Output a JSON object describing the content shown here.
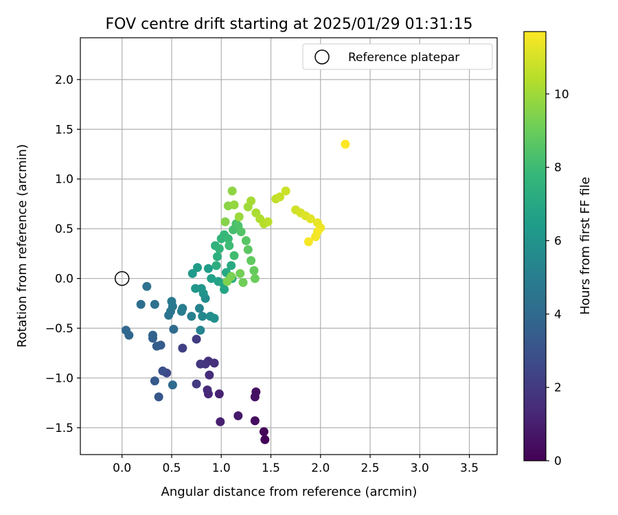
{
  "chart_data": {
    "type": "scatter",
    "title": "FOV centre drift starting at 2025/01/29 01:31:15",
    "xlabel": "Angular distance from reference (arcmin)",
    "ylabel": "Rotation from reference (arcmin)",
    "xlim": [
      -0.42,
      3.78
    ],
    "ylim": [
      -1.77,
      2.42
    ],
    "xticks": [
      0.0,
      0.5,
      1.0,
      1.5,
      2.0,
      2.5,
      3.0,
      3.5
    ],
    "xtick_labels": [
      "0.0",
      "0.5",
      "1.0",
      "1.5",
      "2.0",
      "2.5",
      "3.0",
      "3.5"
    ],
    "yticks": [
      -1.5,
      -1.0,
      -0.5,
      0.0,
      0.5,
      1.0,
      1.5,
      2.0
    ],
    "ytick_labels": [
      "−1.5",
      "−1.0",
      "−0.5",
      "0.0",
      "0.5",
      "1.0",
      "1.5",
      "2.0"
    ],
    "grid": true,
    "legend": {
      "position": "top-right",
      "entries": [
        {
          "label": "Reference platepar",
          "marker": "hollow-circle"
        }
      ]
    },
    "reference_point": {
      "x": 0.0,
      "y": 0.0
    },
    "colorbar": {
      "label": "Hours from first FF file",
      "range": [
        0,
        11.7
      ],
      "ticks": [
        0,
        2,
        4,
        6,
        8,
        10
      ],
      "tick_labels": [
        "0",
        "2",
        "4",
        "6",
        "8",
        "10"
      ],
      "colormap": "viridis",
      "colors": [
        "#440154",
        "#482878",
        "#3e4989",
        "#31688e",
        "#26828e",
        "#1f9e89",
        "#35b779",
        "#6ece58",
        "#b5de2b",
        "#fde725"
      ]
    },
    "series": [
      {
        "points": [
          [
            1.44,
            -1.62,
            0.1
          ],
          [
            1.43,
            -1.54,
            0.2
          ],
          [
            1.34,
            -1.43,
            0.4
          ],
          [
            1.35,
            -1.14,
            0.5
          ],
          [
            1.34,
            -1.19,
            0.5
          ],
          [
            1.17,
            -1.38,
            0.8
          ],
          [
            0.99,
            -1.44,
            1.0
          ],
          [
            0.98,
            -1.16,
            1.1
          ],
          [
            0.87,
            -1.16,
            1.3
          ],
          [
            0.86,
            -1.12,
            1.4
          ],
          [
            0.88,
            -0.97,
            1.5
          ],
          [
            0.93,
            -0.85,
            1.6
          ],
          [
            0.87,
            -0.83,
            1.7
          ],
          [
            0.84,
            -0.86,
            1.8
          ],
          [
            0.79,
            -0.86,
            1.9
          ],
          [
            0.75,
            -1.06,
            2.0
          ],
          [
            0.75,
            -0.61,
            2.1
          ],
          [
            0.61,
            -0.7,
            2.3
          ],
          [
            0.45,
            -0.95,
            2.6
          ],
          [
            0.41,
            -0.93,
            2.9
          ],
          [
            0.37,
            -1.19,
            3.2
          ],
          [
            0.33,
            -1.03,
            3.3
          ],
          [
            0.39,
            -0.67,
            3.4
          ],
          [
            0.35,
            -0.68,
            3.5
          ],
          [
            0.31,
            -0.6,
            3.6
          ],
          [
            0.31,
            -0.57,
            3.7
          ],
          [
            0.07,
            -0.57,
            3.8
          ],
          [
            0.04,
            -0.52,
            3.9
          ],
          [
            0.51,
            -1.07,
            4.0
          ],
          [
            0.52,
            -0.51,
            4.1
          ],
          [
            0.19,
            -0.26,
            4.2
          ],
          [
            0.33,
            -0.26,
            4.3
          ],
          [
            0.25,
            -0.08,
            4.4
          ],
          [
            0.47,
            -0.37,
            4.5
          ],
          [
            0.49,
            -0.33,
            4.6
          ],
          [
            0.51,
            -0.28,
            4.7
          ],
          [
            0.5,
            -0.23,
            4.8
          ],
          [
            0.61,
            -0.3,
            4.9
          ],
          [
            0.6,
            -0.33,
            5.0
          ],
          [
            0.7,
            -0.38,
            5.1
          ],
          [
            0.78,
            -0.3,
            5.2
          ],
          [
            0.79,
            -0.52,
            5.3
          ],
          [
            0.81,
            -0.38,
            5.5
          ],
          [
            0.84,
            -0.2,
            5.6
          ],
          [
            0.89,
            -0.38,
            5.7
          ],
          [
            0.93,
            -0.4,
            5.8
          ],
          [
            0.82,
            -0.15,
            6.0
          ],
          [
            0.8,
            -0.1,
            6.1
          ],
          [
            0.74,
            -0.1,
            6.2
          ],
          [
            0.71,
            0.05,
            6.3
          ],
          [
            0.76,
            0.11,
            6.4
          ],
          [
            0.87,
            0.1,
            6.5
          ],
          [
            0.9,
            0.0,
            6.6
          ],
          [
            0.97,
            -0.03,
            6.7
          ],
          [
            1.03,
            -0.11,
            6.8
          ],
          [
            1.02,
            -0.05,
            6.9
          ],
          [
            1.05,
            0.06,
            7.0
          ],
          [
            1.1,
            0.13,
            7.1
          ],
          [
            1.11,
            0.0,
            7.2
          ],
          [
            0.95,
            0.13,
            7.3
          ],
          [
            0.96,
            0.22,
            7.4
          ],
          [
            0.94,
            0.33,
            7.5
          ],
          [
            0.98,
            0.3,
            7.6
          ],
          [
            1.0,
            0.4,
            7.7
          ],
          [
            1.03,
            0.44,
            7.8
          ],
          [
            1.07,
            0.4,
            7.9
          ],
          [
            1.08,
            0.33,
            8.0
          ],
          [
            1.13,
            0.23,
            8.1
          ],
          [
            1.12,
            0.49,
            8.2
          ],
          [
            1.15,
            0.55,
            8.3
          ],
          [
            1.17,
            0.53,
            8.4
          ],
          [
            1.2,
            0.47,
            8.5
          ],
          [
            1.25,
            0.38,
            8.6
          ],
          [
            1.27,
            0.29,
            8.7
          ],
          [
            1.3,
            0.18,
            8.8
          ],
          [
            1.33,
            0.08,
            8.9
          ],
          [
            1.34,
            0.0,
            9.0
          ],
          [
            1.22,
            -0.04,
            9.1
          ],
          [
            1.19,
            0.05,
            9.2
          ],
          [
            1.1,
            0.02,
            9.3
          ],
          [
            1.06,
            -0.03,
            9.4
          ],
          [
            1.04,
            0.57,
            9.5
          ],
          [
            1.07,
            0.73,
            9.6
          ],
          [
            1.11,
            0.88,
            9.7
          ],
          [
            1.13,
            0.74,
            9.8
          ],
          [
            1.18,
            0.62,
            9.9
          ],
          [
            1.27,
            0.72,
            10.0
          ],
          [
            1.3,
            0.78,
            10.1
          ],
          [
            1.35,
            0.66,
            10.2
          ],
          [
            1.39,
            0.6,
            10.3
          ],
          [
            1.43,
            0.55,
            10.4
          ],
          [
            1.47,
            0.57,
            10.5
          ],
          [
            1.55,
            0.8,
            10.6
          ],
          [
            1.59,
            0.82,
            10.7
          ],
          [
            1.65,
            0.88,
            10.8
          ],
          [
            1.75,
            0.69,
            10.9
          ],
          [
            1.8,
            0.66,
            11.0
          ],
          [
            1.85,
            0.63,
            11.1
          ],
          [
            1.9,
            0.6,
            11.2
          ],
          [
            1.97,
            0.56,
            11.3
          ],
          [
            2.0,
            0.51,
            11.4
          ],
          [
            1.95,
            0.42,
            11.5
          ],
          [
            1.97,
            0.47,
            11.55
          ],
          [
            1.88,
            0.37,
            11.6
          ],
          [
            2.25,
            1.35,
            11.7
          ]
        ],
        "note_hidden": null
      }
    ]
  }
}
